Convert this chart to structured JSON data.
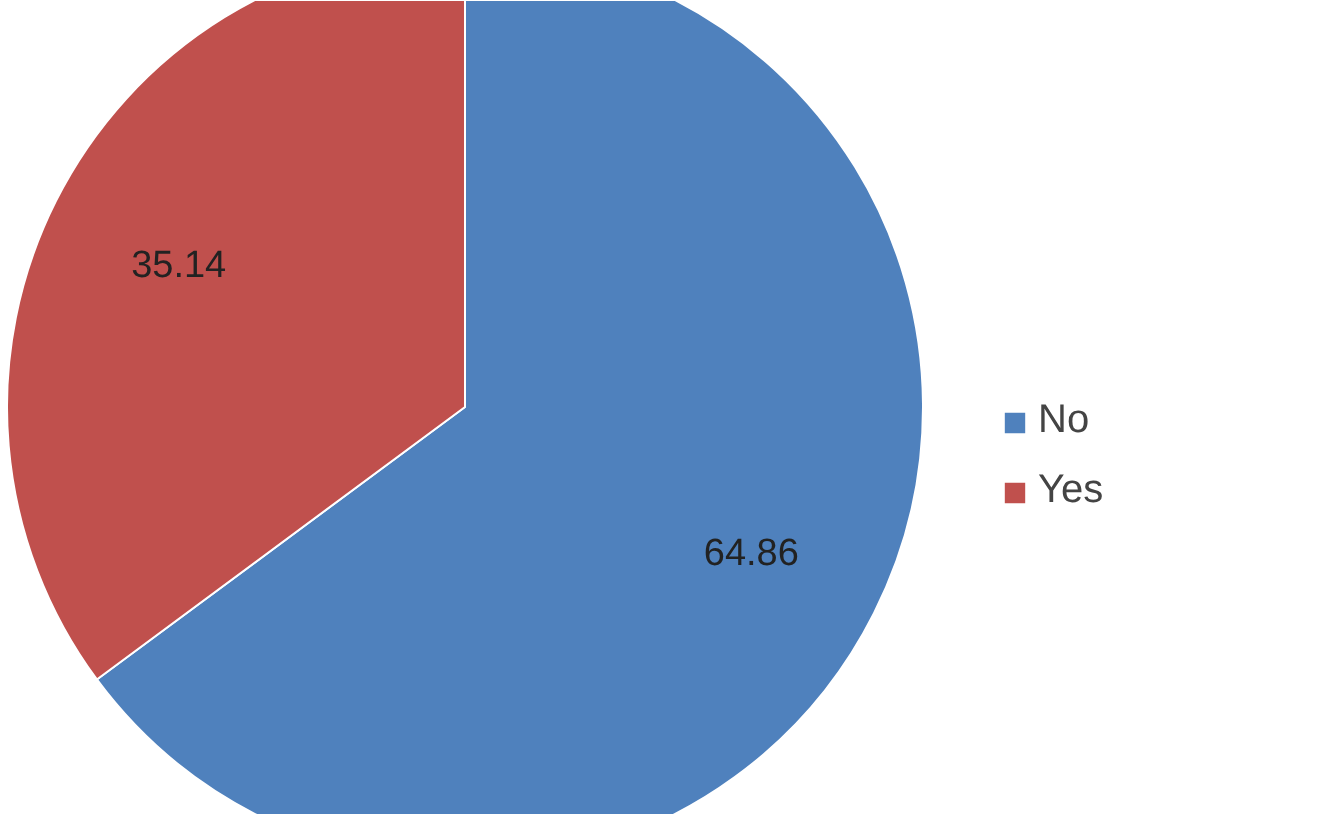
{
  "chart_data": {
    "type": "pie",
    "categories": [
      "No",
      "Yes"
    ],
    "values": [
      64.86,
      35.14
    ],
    "colors": [
      "#4f81bd",
      "#c0504d"
    ],
    "data_labels": true,
    "legend": "right"
  }
}
